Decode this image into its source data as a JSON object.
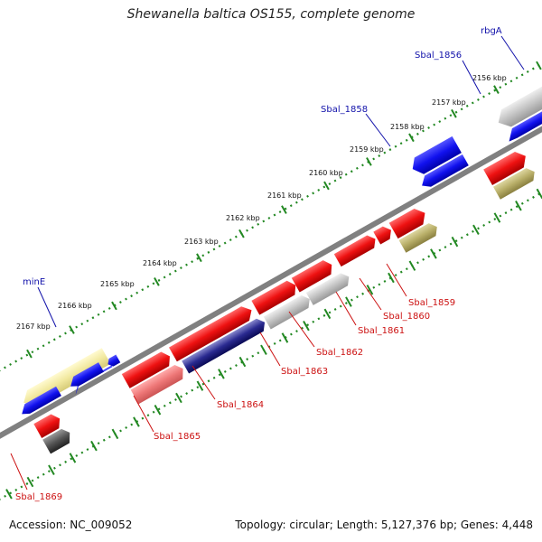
{
  "title": "Shewanella baltica OS155, complete genome",
  "footer": {
    "accession": "Accession: NC_009052",
    "summary": "Topology: circular; Length: 5,127,376 bp; Genes: 4,448"
  },
  "colors": {
    "forward_gene": "#ee1111",
    "reverse_gene": "#1111dd",
    "forward_label": "#cc1111",
    "reverse_label": "#1111aa",
    "tick": "#228822",
    "backbone": "#888888"
  },
  "kbp_labels": [
    "2156 kbp",
    "2157 kbp",
    "2158 kbp",
    "2159 kbp",
    "2160 kbp",
    "2161 kbp",
    "2162 kbp",
    "2163 kbp",
    "2164 kbp",
    "2165 kbp",
    "2166 kbp",
    "2167 kbp"
  ],
  "gene_labels": {
    "rbgA": "rbgA",
    "sbal_1856": "Sbal_1856",
    "sbal_1858": "Sbal_1858",
    "minE": "minE",
    "sbal_1859": "Sbal_1859",
    "sbal_1860": "Sbal_1860",
    "sbal_1861": "Sbal_1861",
    "sbal_1862": "Sbal_1862",
    "sbal_1863": "Sbal_1863",
    "sbal_1864": "Sbal_1864",
    "sbal_1865": "Sbal_1865",
    "sbal_1869": "Sbal_1869"
  }
}
